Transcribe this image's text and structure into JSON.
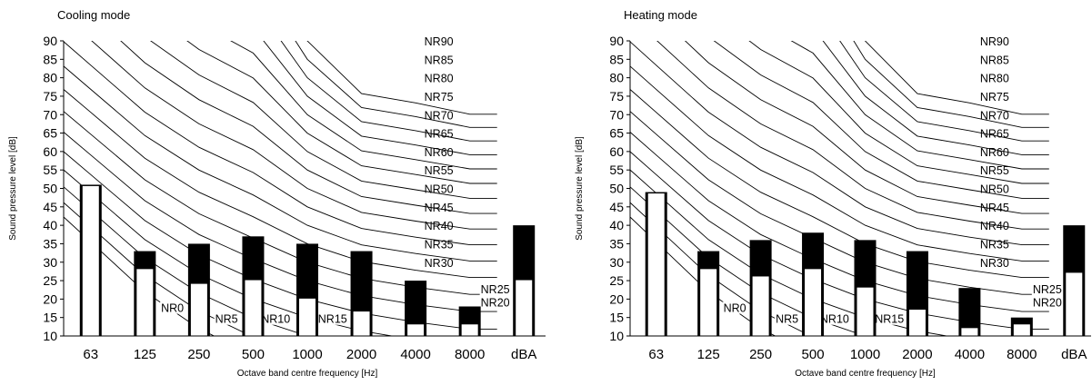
{
  "chart_data": [
    {
      "type": "bar",
      "title": "Cooling mode",
      "xlabel": "Octave band centre frequency [Hz]",
      "ylabel": "Sound pressure level [dB]",
      "ylim": [
        10,
        90
      ],
      "yticks": [
        10,
        15,
        20,
        25,
        30,
        35,
        40,
        45,
        50,
        55,
        60,
        65,
        70,
        75,
        80,
        85,
        90
      ],
      "right_yticks": [
        10,
        20,
        30,
        40,
        50,
        60,
        70,
        80,
        90
      ],
      "categories": [
        "63",
        "125",
        "250",
        "500",
        "1000",
        "2000",
        "4000",
        "8000",
        "dBA"
      ],
      "series": [
        {
          "values": [
            51,
            33,
            35,
            37,
            35,
            33,
            25,
            18,
            40
          ]
        },
        {
          "values": [
            51,
            28.5,
            24.5,
            25.5,
            20.5,
            17,
            13.5,
            13.5,
            25.5
          ]
        }
      ],
      "nr_curve_labels": [
        "NR0",
        "NR5",
        "NR10",
        "NR15",
        "NR20",
        "NR25",
        "NR30",
        "NR35",
        "NR40",
        "NR45",
        "NR50",
        "NR55",
        "NR60",
        "NR65",
        "NR70",
        "NR75",
        "NR80",
        "NR85",
        "NR90"
      ],
      "grid": false
    },
    {
      "type": "bar",
      "title": "Heating mode",
      "xlabel": "Octave band centre frequency [Hz]",
      "ylabel": "Sound pressure level [dB]",
      "ylim": [
        10,
        90
      ],
      "yticks": [
        10,
        15,
        20,
        25,
        30,
        35,
        40,
        45,
        50,
        55,
        60,
        65,
        70,
        75,
        80,
        85,
        90
      ],
      "right_yticks": [
        10,
        20,
        30,
        40,
        50,
        60,
        70,
        80,
        90
      ],
      "categories": [
        "63",
        "125",
        "250",
        "500",
        "1000",
        "2000",
        "4000",
        "8000",
        "dBA"
      ],
      "series": [
        {
          "values": [
            49,
            33,
            36,
            38,
            36,
            33,
            23,
            15,
            40
          ]
        },
        {
          "values": [
            49,
            28.5,
            26.5,
            28.5,
            23.5,
            17.5,
            12.5,
            13.5,
            27.5
          ]
        }
      ],
      "nr_curve_labels": [
        "NR0",
        "NR5",
        "NR10",
        "NR15",
        "NR20",
        "NR25",
        "NR30",
        "NR35",
        "NR40",
        "NR45",
        "NR50",
        "NR55",
        "NR60",
        "NR65",
        "NR70",
        "NR75",
        "NR80",
        "NR85",
        "NR90"
      ],
      "grid": false
    }
  ]
}
